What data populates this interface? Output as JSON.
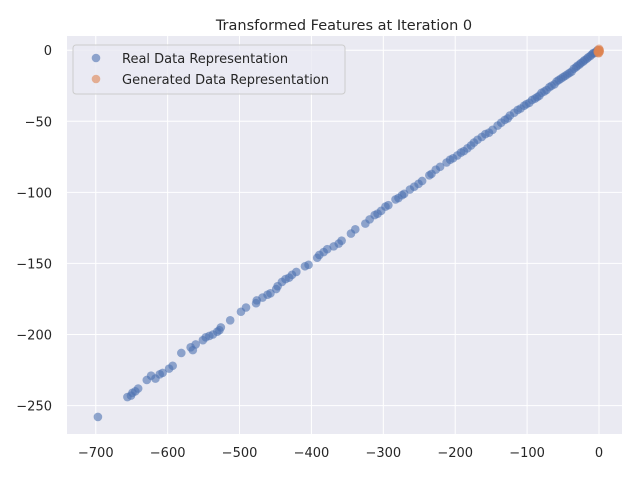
{
  "chart_data": {
    "type": "scatter",
    "title": "Transformed Features at Iteration 0",
    "xlabel": "",
    "ylabel": "",
    "xlim": [
      -740,
      32
    ],
    "ylim": [
      -270,
      10
    ],
    "xticks": [
      -700,
      -600,
      -500,
      -400,
      -300,
      -200,
      -100,
      0
    ],
    "yticks": [
      0,
      -50,
      -100,
      -150,
      -200,
      -250
    ],
    "xtick_labels": [
      "−700",
      "−600",
      "−500",
      "−400",
      "−300",
      "−200",
      "−100",
      "0"
    ],
    "ytick_labels": [
      "0",
      "−50",
      "−100",
      "−150",
      "−200",
      "−250"
    ],
    "grid": true,
    "legend_position": "top-left",
    "colors": {
      "background": "#eaeaf2",
      "grid": "#ffffff",
      "real": "#4c72b0",
      "generated": "#dd8452"
    },
    "series": [
      {
        "name": "Real Data Representation",
        "color": "#4c72b0",
        "points": [
          [
            -697,
            -258
          ],
          [
            -656,
            -244
          ],
          [
            -651,
            -243
          ],
          [
            -649,
            -241
          ],
          [
            -645,
            -240
          ],
          [
            -641,
            -238
          ],
          [
            -629,
            -232
          ],
          [
            -623,
            -229
          ],
          [
            -617,
            -231
          ],
          [
            -611,
            -228
          ],
          [
            -607,
            -227
          ],
          [
            -598,
            -224
          ],
          [
            -593,
            -222
          ],
          [
            -581,
            -213
          ],
          [
            -568,
            -209
          ],
          [
            -565,
            -211
          ],
          [
            -561,
            -207
          ],
          [
            -551,
            -204
          ],
          [
            -547,
            -202
          ],
          [
            -542,
            -201
          ],
          [
            -537,
            -200
          ],
          [
            -531,
            -198
          ],
          [
            -528,
            -197
          ],
          [
            -526,
            -195
          ],
          [
            -513,
            -190
          ],
          [
            -498,
            -184
          ],
          [
            -491,
            -181
          ],
          [
            -477,
            -178
          ],
          [
            -476,
            -176
          ],
          [
            -468,
            -174
          ],
          [
            -461,
            -172
          ],
          [
            -457,
            -171
          ],
          [
            -449,
            -168
          ],
          [
            -447,
            -166
          ],
          [
            -441,
            -163
          ],
          [
            -436,
            -161
          ],
          [
            -431,
            -160
          ],
          [
            -427,
            -158
          ],
          [
            -421,
            -156
          ],
          [
            -409,
            -152
          ],
          [
            -404,
            -151
          ],
          [
            -392,
            -146
          ],
          [
            -389,
            -144
          ],
          [
            -383,
            -142
          ],
          [
            -378,
            -140
          ],
          [
            -369,
            -138
          ],
          [
            -362,
            -136
          ],
          [
            -358,
            -134
          ],
          [
            -345,
            -129
          ],
          [
            -339,
            -126
          ],
          [
            -325,
            -122
          ],
          [
            -319,
            -119
          ],
          [
            -312,
            -116
          ],
          [
            -308,
            -115
          ],
          [
            -303,
            -113
          ],
          [
            -297,
            -110
          ],
          [
            -293,
            -109
          ],
          [
            -283,
            -105
          ],
          [
            -279,
            -104
          ],
          [
            -274,
            -102
          ],
          [
            -271,
            -101
          ],
          [
            -263,
            -98
          ],
          [
            -257,
            -96
          ],
          [
            -251,
            -94
          ],
          [
            -246,
            -92
          ],
          [
            -236,
            -88
          ],
          [
            -233,
            -87
          ],
          [
            -227,
            -84
          ],
          [
            -221,
            -82
          ],
          [
            -212,
            -79
          ],
          [
            -207,
            -77
          ],
          [
            -203,
            -76
          ],
          [
            -197,
            -74
          ],
          [
            -192,
            -72
          ],
          [
            -188,
            -71
          ],
          [
            -183,
            -69
          ],
          [
            -178,
            -67
          ],
          [
            -174,
            -65
          ],
          [
            -169,
            -63
          ],
          [
            -163,
            -61
          ],
          [
            -158,
            -59
          ],
          [
            -153,
            -58
          ],
          [
            -148,
            -56
          ],
          [
            -141,
            -53
          ],
          [
            -136,
            -51
          ],
          [
            -131,
            -49
          ],
          [
            -127,
            -48
          ],
          [
            -124,
            -46
          ],
          [
            -118,
            -44
          ],
          [
            -113,
            -42
          ],
          [
            -109,
            -41
          ],
          [
            -104,
            -39
          ],
          [
            -101,
            -38
          ],
          [
            -97,
            -37
          ],
          [
            -93,
            -35
          ],
          [
            -89,
            -34
          ],
          [
            -86,
            -33
          ],
          [
            -83,
            -32
          ],
          [
            -80,
            -30
          ],
          [
            -76,
            -29
          ],
          [
            -73,
            -28
          ],
          [
            -69,
            -26
          ],
          [
            -66,
            -25
          ],
          [
            -62,
            -24
          ],
          [
            -59,
            -22
          ],
          [
            -56,
            -21
          ],
          [
            -53,
            -20
          ],
          [
            -50,
            -19
          ],
          [
            -47,
            -18
          ],
          [
            -44,
            -17
          ],
          [
            -41,
            -16
          ],
          [
            -38,
            -15
          ],
          [
            -35,
            -13
          ],
          [
            -32,
            -12
          ],
          [
            -30,
            -11
          ],
          [
            -27,
            -10
          ],
          [
            -25,
            -9
          ],
          [
            -22,
            -8
          ],
          [
            -20,
            -7
          ],
          [
            -17,
            -6
          ],
          [
            -15,
            -5
          ],
          [
            -12,
            -4
          ],
          [
            -10,
            -3
          ],
          [
            -8,
            -2
          ],
          [
            -6,
            -2
          ],
          [
            -4,
            -1
          ],
          [
            -2,
            0
          ]
        ]
      },
      {
        "name": "Generated Data Representation",
        "color": "#dd8452",
        "points": [
          [
            -1,
            -1
          ],
          [
            0,
            0
          ],
          [
            -1,
            0
          ],
          [
            0,
            -1
          ],
          [
            1,
            0
          ],
          [
            -2,
            -1
          ],
          [
            0,
            1
          ],
          [
            -1,
            -2
          ],
          [
            1,
            -1
          ],
          [
            0,
            -2
          ]
        ]
      }
    ]
  }
}
